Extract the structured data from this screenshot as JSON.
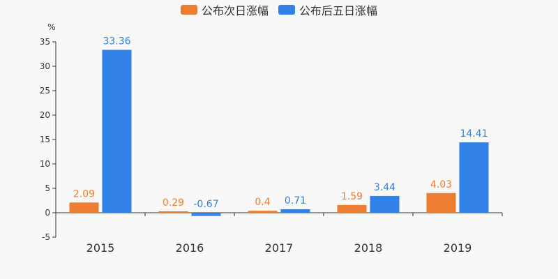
{
  "chart_data": {
    "type": "bar",
    "categories": [
      "2015",
      "2016",
      "2017",
      "2018",
      "2019"
    ],
    "series": [
      {
        "name": "公布次日涨幅",
        "color": "#ed7d31",
        "values": [
          2.09,
          0.29,
          0.4,
          1.59,
          4.03
        ],
        "labels": [
          "2.09",
          "0.29",
          "0.4",
          "1.59",
          "4.03"
        ]
      },
      {
        "name": "公布后五日涨幅",
        "color": "#3281e6",
        "values": [
          33.36,
          -0.67,
          0.71,
          3.44,
          14.41
        ],
        "labels": [
          "33.36",
          "-0.67",
          "0.71",
          "3.44",
          "14.41"
        ]
      }
    ],
    "ylabel": "%",
    "ylim": [
      -5,
      35
    ],
    "yticks": [
      "35",
      "30",
      "25",
      "20",
      "15",
      "10",
      "5",
      "0",
      "-5"
    ],
    "grid": false,
    "legend_position": "top-center"
  }
}
